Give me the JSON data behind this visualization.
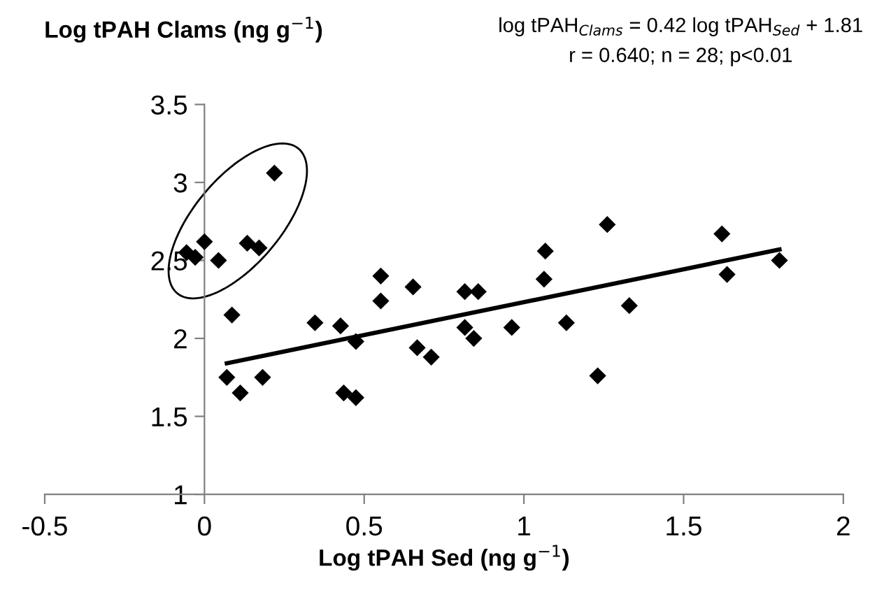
{
  "chart_data": {
    "type": "scatter",
    "xlabel": "Log tPAH Sed (ng g$^{−1}$)",
    "ylabel": "Log tPAH Clams (ng g$^{−1}$)",
    "annotations": [
      "log tPAH$_{Clams}$ = 0.42 log tPAH$_{Sed}$ + 1.81",
      "r = 0.640; n = 28; p<0.01"
    ],
    "xlim": [
      -0.5,
      2
    ],
    "ylim": [
      1,
      3.5
    ],
    "xticks": [
      -0.5,
      0,
      0.5,
      1,
      1.5,
      2
    ],
    "yticks": [
      1,
      1.5,
      2,
      2.5,
      3,
      3.5
    ],
    "grid": false,
    "legend": false,
    "marker": "diamond",
    "series": [
      {
        "color": "#000000",
        "x": [
          -0.056,
          -0.029,
          0.0,
          0.044,
          0.086,
          0.07,
          0.112,
          0.134,
          0.171,
          0.182,
          0.219,
          0.346,
          0.426,
          0.436,
          0.474,
          0.474,
          0.552,
          0.552,
          0.653,
          0.666,
          0.71,
          0.815,
          0.815,
          0.843,
          0.857,
          0.962,
          1.063,
          1.067,
          1.133,
          1.231,
          1.261,
          1.33,
          1.62,
          1.636,
          1.8
        ],
        "values": [
          2.55,
          2.52,
          2.62,
          2.5,
          2.15,
          1.75,
          1.65,
          2.61,
          2.58,
          1.75,
          3.06,
          2.1,
          2.08,
          1.65,
          1.62,
          1.98,
          2.4,
          2.24,
          2.33,
          1.94,
          1.88,
          2.3,
          2.07,
          2.0,
          2.3,
          2.07,
          2.38,
          2.56,
          2.1,
          1.76,
          2.73,
          2.21,
          2.67,
          2.41,
          2.5
        ]
      },
      {
        "type": "line",
        "marker": "none",
        "color": "#000000",
        "x": [
          0.07,
          1.8
        ],
        "values": [
          1.84,
          2.57
        ]
      }
    ]
  }
}
